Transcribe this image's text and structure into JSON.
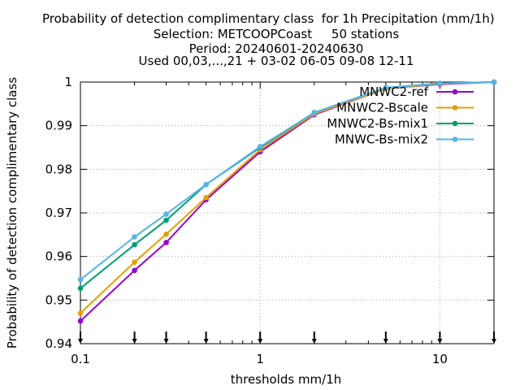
{
  "chart_data": {
    "type": "line",
    "title_lines": [
      "Probability of detection complimentary class  for 1h Precipitation (mm/1h)",
      "Selection: METCOOPCoast     50 stations",
      "Period: 20240601-20240630",
      "Used 00,03,...,21 + 03-02 06-05 09-08 12-11"
    ],
    "xlabel": "thresholds mm/1h",
    "ylabel": "Probability of detection complimentary class",
    "x_scale": "log",
    "xlim": [
      0.1,
      20
    ],
    "ylim": [
      0.94,
      1.0
    ],
    "x_ticks": [
      0.1,
      1,
      10
    ],
    "x_tick_labels": [
      "0.1",
      "1",
      "10"
    ],
    "y_ticks": [
      0.94,
      0.95,
      0.96,
      0.97,
      0.98,
      0.99,
      1.0
    ],
    "y_tick_labels": [
      "0.94",
      "0.95",
      "0.96",
      "0.97",
      "0.98",
      "0.99",
      "1"
    ],
    "grid": true,
    "legend_position": "top-right",
    "x": [
      0.1,
      0.2,
      0.3,
      0.5,
      1,
      2,
      5,
      10,
      20
    ],
    "series": [
      {
        "name": "MNWC2-ref",
        "color": "#9400d3",
        "values": [
          0.9452,
          0.9568,
          0.9632,
          0.973,
          0.984,
          0.9925,
          0.9985,
          0.9995,
          1.0
        ]
      },
      {
        "name": "MNWC2-Bscale",
        "color": "#e69f00",
        "values": [
          0.947,
          0.9587,
          0.9651,
          0.9735,
          0.9845,
          0.9927,
          0.9985,
          0.9996,
          1.0
        ]
      },
      {
        "name": "MNWC2-Bs-mix1",
        "color": "#009e73",
        "values": [
          0.9527,
          0.9627,
          0.9683,
          0.9765,
          0.985,
          0.993,
          0.9987,
          0.9997,
          1.0
        ]
      },
      {
        "name": "MNWC-Bs-mix2",
        "color": "#56b4e9",
        "values": [
          0.9547,
          0.9645,
          0.9697,
          0.9765,
          0.9852,
          0.993,
          0.9987,
          0.9997,
          1.0
        ]
      }
    ]
  }
}
